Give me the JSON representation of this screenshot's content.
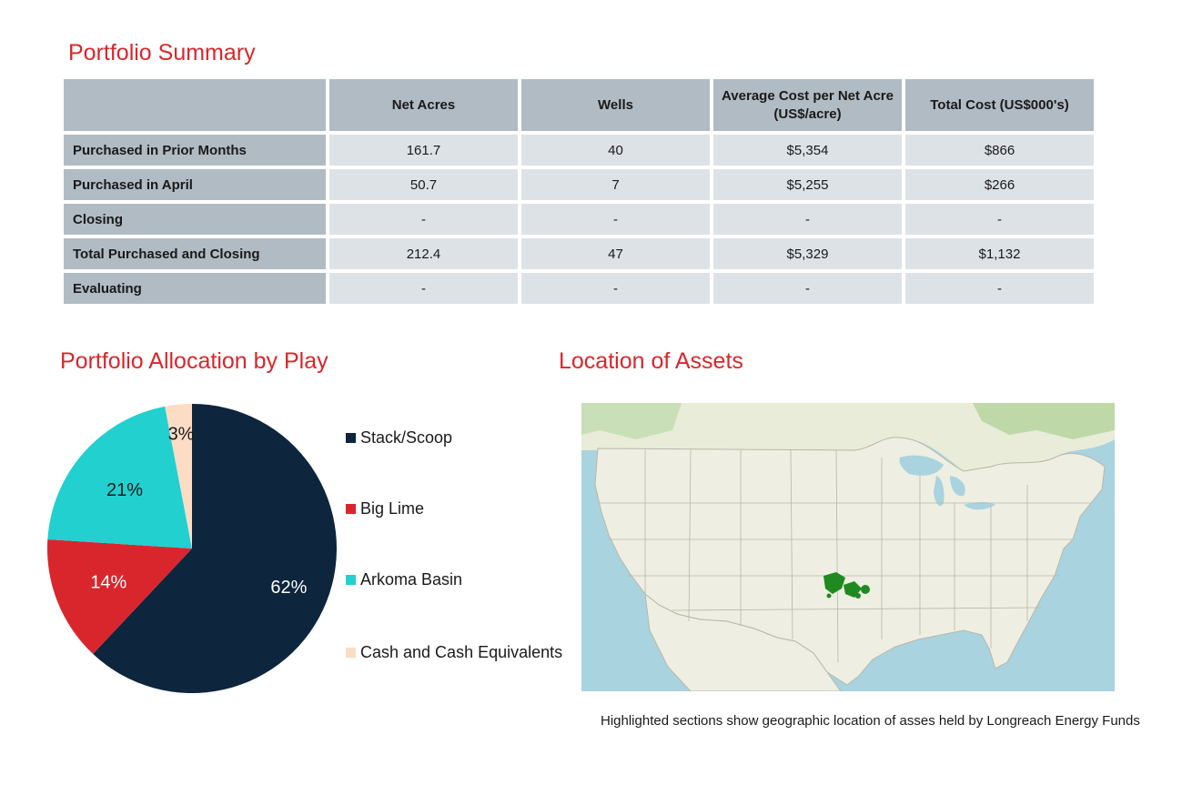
{
  "summary": {
    "title": "Portfolio Summary",
    "columns": [
      "",
      "Net Acres",
      "Wells",
      "Average Cost per Net Acre (US$/acre)",
      "Total Cost (US$000's)"
    ],
    "rows": [
      {
        "label": "Purchased in Prior Months",
        "cells": [
          "161.7",
          "40",
          "$5,354",
          "$866"
        ]
      },
      {
        "label": "Purchased in April",
        "cells": [
          "50.7",
          "7",
          "$5,255",
          "$266"
        ]
      },
      {
        "label": "Closing",
        "cells": [
          "-",
          "-",
          "-",
          "-"
        ]
      },
      {
        "label": "Total Purchased and Closing",
        "cells": [
          "212.4",
          "47",
          "$5,329",
          "$1,132"
        ]
      },
      {
        "label": "Evaluating",
        "cells": [
          "-",
          "-",
          "-",
          "-"
        ]
      }
    ]
  },
  "allocation": {
    "title": "Portfolio Allocation by Play"
  },
  "chart_data": {
    "type": "pie",
    "categories": [
      "Stack/Scoop",
      "Big Lime",
      "Arkoma Basin",
      "Cash and Cash Equivalents"
    ],
    "values": [
      62,
      14,
      21,
      3
    ],
    "labels": [
      "62%",
      "14%",
      "21%",
      "3%"
    ],
    "colors": [
      "#0d253d",
      "#d9262c",
      "#22d0d0",
      "#fddcc4"
    ],
    "label_colors": [
      "#ffffff",
      "#ffffff",
      "#1a1a1a",
      "#1a1a1a"
    ],
    "legend_position": "right"
  },
  "location": {
    "title": "Location of Assets",
    "caption": "Highlighted sections show geographic location of  asses held by Longreach Energy Funds"
  },
  "colors": {
    "accent": "#d9262c",
    "header_bg": "#b1bbc4",
    "cell_bg": "#dde2e7",
    "highlight": "#1f8a1f"
  }
}
